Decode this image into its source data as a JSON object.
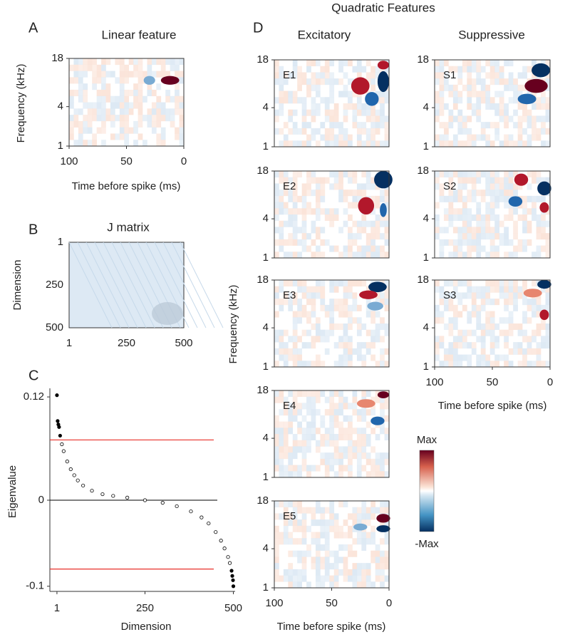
{
  "figure": {
    "panel_a": {
      "letter": "A",
      "title": "Linear feature",
      "ylabel": "Frequency (kHz)",
      "xlabel": "Time before spike (ms)"
    },
    "panel_b": {
      "letter": "B",
      "title": "J matrix",
      "ylabel": "Dimension"
    },
    "panel_d": {
      "letter": "D",
      "title": "Quadratic Features",
      "excitatory": "Excitatory",
      "suppressive": "Suppressive",
      "ylabel": "Frequency (kHz)",
      "xlabel": "Time before spike (ms)",
      "e_labels": [
        "E1",
        "E2",
        "E3",
        "E4",
        "E5"
      ],
      "s_labels": [
        "S1",
        "S2",
        "S3"
      ],
      "colorbar_max": "Max",
      "colorbar_min": "-Max"
    },
    "freq_ticks": [
      "18",
      "4",
      "1"
    ],
    "time_ticks": [
      "100",
      "50",
      "0"
    ],
    "dim_ticks": [
      "1",
      "250",
      "500"
    ]
  },
  "chart_data": {
    "type": "scatter",
    "letter": "C",
    "ylabel": "Eigenvalue",
    "xlabel": "Dimension",
    "x": [
      1,
      3,
      5,
      7,
      10,
      15,
      20,
      30,
      40,
      50,
      60,
      75,
      100,
      130,
      160,
      200,
      250,
      300,
      340,
      380,
      410,
      430,
      450,
      465,
      475,
      485,
      490,
      495,
      497,
      499,
      500
    ],
    "values": [
      0.122,
      0.092,
      0.088,
      0.085,
      0.075,
      0.065,
      0.057,
      0.045,
      0.036,
      0.029,
      0.023,
      0.017,
      0.011,
      0.007,
      0.005,
      0.003,
      0.0,
      -0.003,
      -0.007,
      -0.013,
      -0.02,
      -0.027,
      -0.037,
      -0.047,
      -0.056,
      -0.066,
      -0.073,
      -0.082,
      -0.088,
      -0.093,
      -0.1
    ],
    "xlim": [
      -19,
      505
    ],
    "ylim": [
      -0.106,
      0.13
    ],
    "xticks": [
      1,
      250,
      500
    ],
    "yticks": [
      -0.1,
      0,
      0.12
    ],
    "hlines": [
      0.07,
      -0.08
    ],
    "hline_color": "#e8312a",
    "zero_line": true,
    "color": "#000000"
  }
}
